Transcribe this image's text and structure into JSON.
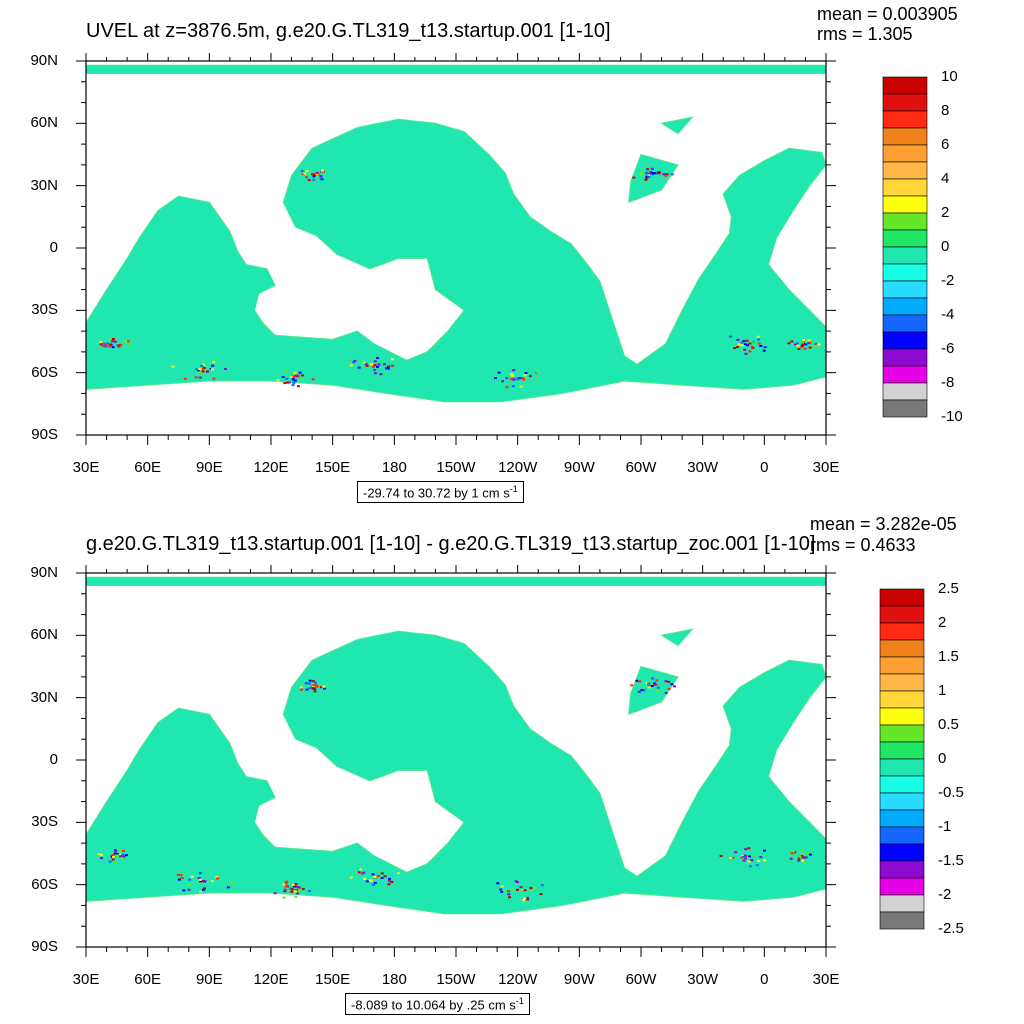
{
  "chart_data": [
    {
      "type": "heatmap",
      "title": "UVEL at z=3876.5m, g.e20.G.TL319_t13.startup.001 [1-10]",
      "stats": {
        "mean": "mean = 0.003905",
        "rms": "rms = 1.305"
      },
      "x_tick_labels": [
        "30E",
        "60E",
        "90E",
        "120E",
        "150E",
        "180",
        "150W",
        "120W",
        "90W",
        "60W",
        "30W",
        "0",
        "30E"
      ],
      "y_tick_labels": [
        "90N",
        "60N",
        "30N",
        "0",
        "30S",
        "60S",
        "90S"
      ],
      "xlim": [
        30,
        390
      ],
      "ylim": [
        -90,
        90
      ],
      "colorbar": {
        "labels": [
          "10",
          "8",
          "6",
          "4",
          "2",
          "0",
          "-2",
          "-4",
          "-6",
          "-8",
          "-10"
        ],
        "min": -10,
        "max": 10,
        "colors": [
          "#c80000",
          "#e01010",
          "#ff2a12",
          "#f0801a",
          "#ff9e35",
          "#ffb848",
          "#ffd838",
          "#ffff10",
          "#66e628",
          "#20e864",
          "#20e6b0",
          "#18ffe8",
          "#28dcff",
          "#00aaff",
          "#1466ff",
          "#0000ff",
          "#8c0ad2",
          "#e600e6",
          "#d2d2d2",
          "#787878"
        ]
      },
      "range_label": "-29.74 to 30.72 by 1 cm s",
      "range_sup": "-1"
    },
    {
      "type": "heatmap",
      "title": "g.e20.G.TL319_t13.startup.001 [1-10] - g.e20.G.TL319_t13.startup_zoc.001 [1-10]",
      "stats": {
        "mean": "mean = 3.282e-05",
        "rms": "rms = 0.4633"
      },
      "x_tick_labels": [
        "30E",
        "60E",
        "90E",
        "120E",
        "150E",
        "180",
        "150W",
        "120W",
        "90W",
        "60W",
        "30W",
        "0",
        "30E"
      ],
      "y_tick_labels": [
        "90N",
        "60N",
        "30N",
        "0",
        "30S",
        "60S",
        "90S"
      ],
      "xlim": [
        30,
        390
      ],
      "ylim": [
        -90,
        90
      ],
      "colorbar": {
        "labels": [
          "2.5",
          "2",
          "1.5",
          "1",
          "0.5",
          "0",
          "-0.5",
          "-1",
          "-1.5",
          "-2",
          "-2.5"
        ],
        "min": -2.5,
        "max": 2.5,
        "colors": [
          "#c80000",
          "#e01010",
          "#ff2a12",
          "#f0801a",
          "#ff9e35",
          "#ffb848",
          "#ffd838",
          "#ffff10",
          "#66e628",
          "#20e864",
          "#20e6b0",
          "#18ffe8",
          "#28dcff",
          "#00aaff",
          "#1466ff",
          "#0000ff",
          "#8c0ad2",
          "#e600e6",
          "#d2d2d2",
          "#787878"
        ]
      },
      "range_label": "-8.089 to 10.064 by .25 cm s",
      "range_sup": "-1"
    }
  ]
}
